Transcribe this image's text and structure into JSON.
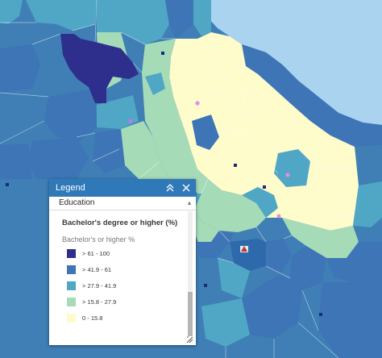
{
  "legend": {
    "header_title": "Legend",
    "layer_name": "Education",
    "title": "Bachelor's degree or higher (%)",
    "field_label": "Bachelor's or higher %",
    "entries": [
      {
        "label": "> 61 - 100",
        "color": "#2e2f8c"
      },
      {
        "label": "> 41.9 - 61",
        "color": "#3d75b6"
      },
      {
        "label": "> 27.9 - 41.9",
        "color": "#4fa6c5"
      },
      {
        "label": "> 15.8 - 27.9",
        "color": "#a6dbb8"
      },
      {
        "label": "0 - 15.8",
        "color": "#fefccb"
      }
    ]
  },
  "map": {
    "water_color": "#a9d3ee",
    "markers": [
      "purple-dot",
      "navy-square",
      "red-triangle"
    ]
  }
}
